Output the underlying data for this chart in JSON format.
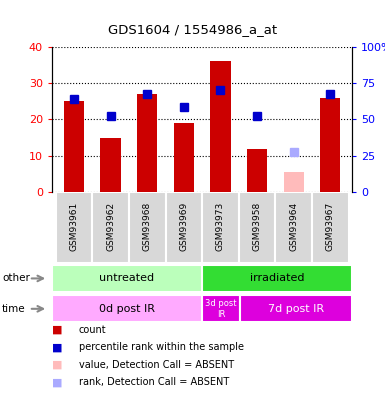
{
  "title": "GDS1604 / 1554986_a_at",
  "samples": [
    "GSM93961",
    "GSM93962",
    "GSM93968",
    "GSM93969",
    "GSM93973",
    "GSM93958",
    "GSM93964",
    "GSM93967"
  ],
  "bar_values": [
    25,
    15,
    27,
    19,
    36,
    12,
    5.5,
    26
  ],
  "bar_colors": [
    "#cc0000",
    "#cc0000",
    "#cc0000",
    "#cc0000",
    "#cc0000",
    "#cc0000",
    "#ffbbbb",
    "#cc0000"
  ],
  "rank_values": [
    25.5,
    21,
    27,
    23.5,
    28,
    21,
    11,
    27
  ],
  "rank_colors": [
    "#0000cc",
    "#0000cc",
    "#0000cc",
    "#0000cc",
    "#0000cc",
    "#0000cc",
    "#aaaaff",
    "#0000cc"
  ],
  "ylim_left": [
    0,
    40
  ],
  "ylim_right": [
    0,
    100
  ],
  "yticks_left": [
    0,
    10,
    20,
    30,
    40
  ],
  "yticks_right": [
    0,
    25,
    50,
    75,
    100
  ],
  "ytick_labels_right": [
    "0",
    "25",
    "50",
    "75",
    "100%"
  ],
  "group_other": [
    {
      "label": "untreated",
      "start": 0,
      "end": 4,
      "color": "#bbffbb"
    },
    {
      "label": "irradiated",
      "start": 4,
      "end": 8,
      "color": "#33dd33"
    }
  ],
  "group_time": [
    {
      "label": "0d post IR",
      "start": 0,
      "end": 4,
      "color": "#ffaaff"
    },
    {
      "label": "3d post\nIR",
      "start": 4,
      "end": 5,
      "color": "#dd00dd"
    },
    {
      "label": "7d post IR",
      "start": 5,
      "end": 8,
      "color": "#dd00dd"
    }
  ],
  "legend_items": [
    {
      "color": "#cc0000",
      "label": "count"
    },
    {
      "color": "#0000cc",
      "label": "percentile rank within the sample"
    },
    {
      "color": "#ffbbbb",
      "label": "value, Detection Call = ABSENT"
    },
    {
      "color": "#aaaaff",
      "label": "rank, Detection Call = ABSENT"
    }
  ],
  "bar_width": 0.55,
  "rank_marker_size": 6,
  "n_samples": 8
}
